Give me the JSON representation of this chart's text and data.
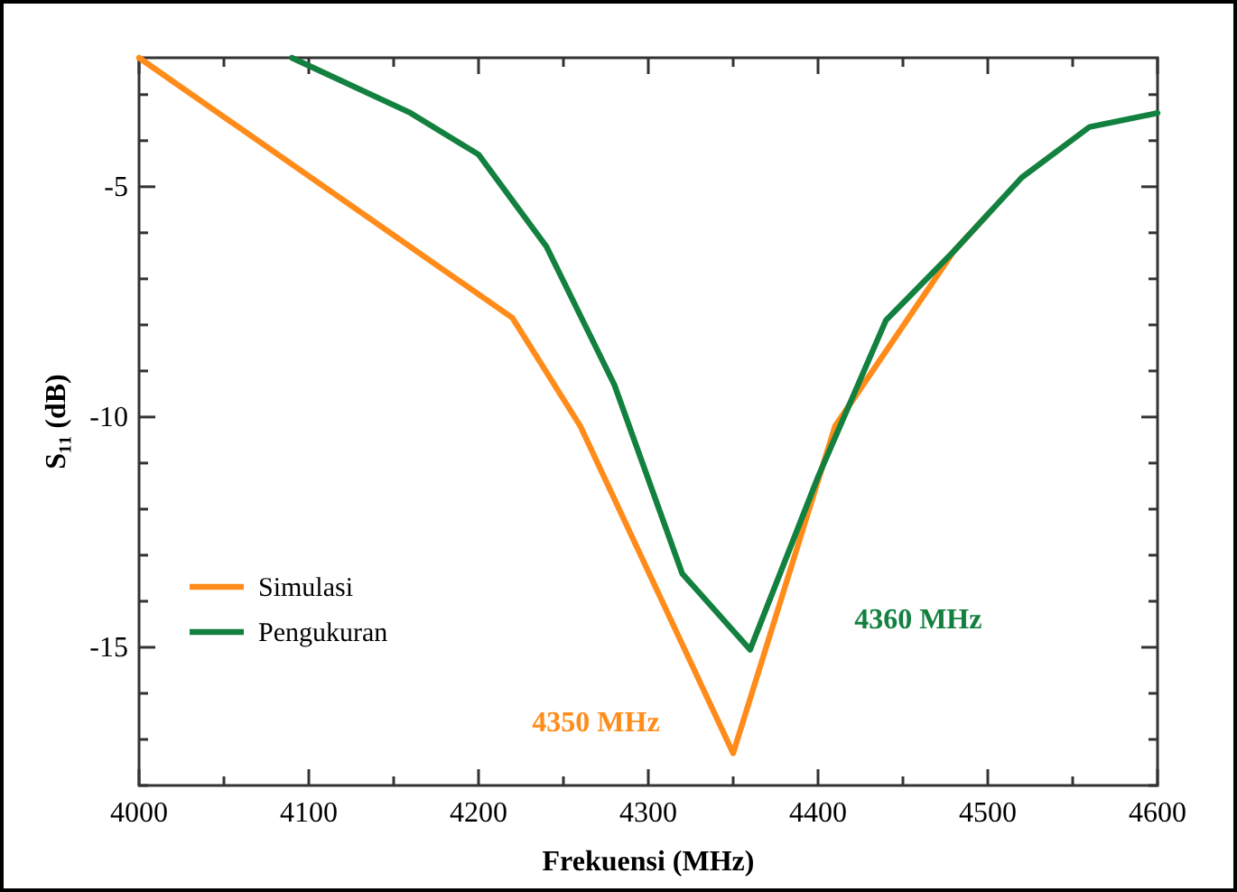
{
  "chart_data": {
    "type": "line",
    "xlabel": "Frekuensi (MHz)",
    "ylabel": "S₁₁ (dB)",
    "xlim": [
      4000,
      4600
    ],
    "ylim": [
      -18,
      -2.2
    ],
    "xticks": [
      4000,
      {
        "value": 4050,
        "label": null
      },
      4100,
      {
        "value": 4150,
        "label": null
      },
      4200,
      {
        "value": 4250,
        "label": null
      },
      4300,
      {
        "value": 4350,
        "label": null
      },
      4400,
      {
        "value": 4450,
        "label": null
      },
      4500,
      {
        "value": 4550,
        "label": null
      },
      4600
    ],
    "yticks": [
      {
        "value": -18,
        "label": null
      },
      {
        "value": -17,
        "label": null
      },
      {
        "value": -16,
        "label": null
      },
      -15,
      {
        "value": -14,
        "label": null
      },
      {
        "value": -13,
        "label": null
      },
      {
        "value": -12,
        "label": null
      },
      {
        "value": -11,
        "label": null
      },
      -10,
      {
        "value": -9,
        "label": null
      },
      {
        "value": -8,
        "label": null
      },
      {
        "value": -7,
        "label": null
      },
      {
        "value": -6,
        "label": null
      },
      -5,
      {
        "value": -4,
        "label": null
      },
      {
        "value": -3,
        "label": null
      }
    ],
    "series": [
      {
        "name": "Simulasi",
        "color": "#ff8c1a",
        "x": [
          4000,
          4220,
          4260,
          4350,
          4410,
          4480,
          4500
        ],
        "values": [
          -2.2,
          -7.85,
          -10.2,
          -17.3,
          -10.2,
          -6.4,
          -5.6
        ]
      },
      {
        "name": "Pengukuran",
        "color": "#12803e",
        "x": [
          4090,
          4160,
          4200,
          4240,
          4280,
          4320,
          4360,
          4400,
          4440,
          4480,
          4520,
          4560,
          4600
        ],
        "values": [
          -2.2,
          -3.4,
          -4.3,
          -6.3,
          -9.3,
          -13.4,
          -15.05,
          -11.3,
          -7.9,
          -6.4,
          -4.8,
          -3.7,
          -3.4
        ]
      }
    ],
    "annotations": [
      "4350 MHz",
      "4360 MHz"
    ],
    "legend": "bottom left",
    "grid": false,
    "marker": "none",
    "line_style": "solid"
  }
}
